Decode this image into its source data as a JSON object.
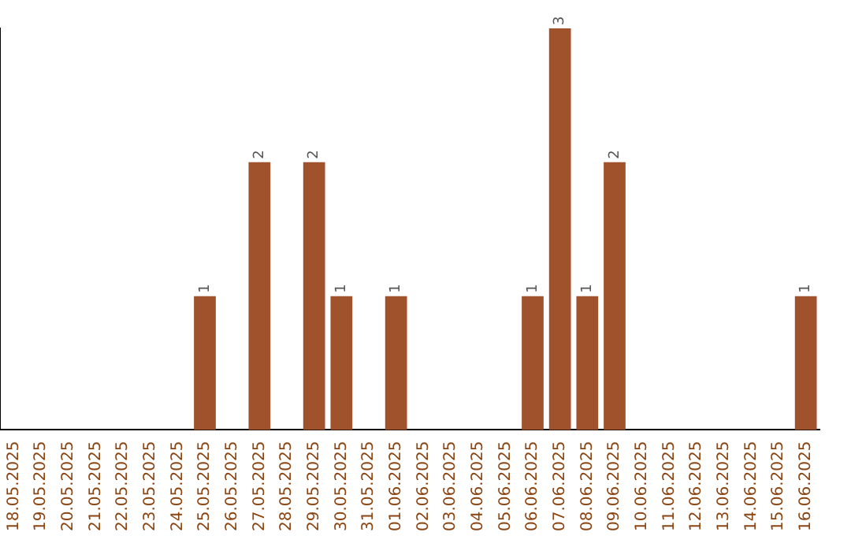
{
  "chart_data": {
    "type": "bar",
    "categories": [
      "18.05.2025",
      "19.05.2025",
      "20.05.2025",
      "21.05.2025",
      "22.05.2025",
      "23.05.2025",
      "24.05.2025",
      "25.05.2025",
      "26.05.2025",
      "27.05.2025",
      "28.05.2025",
      "29.05.2025",
      "30.05.2025",
      "31.05.2025",
      "01.06.2025",
      "02.06.2025",
      "03.06.2025",
      "04.06.2025",
      "05.06.2025",
      "06.06.2025",
      "07.06.2025",
      "08.06.2025",
      "09.06.2025",
      "10.06.2025",
      "11.06.2025",
      "12.06.2025",
      "13.06.2025",
      "14.06.2025",
      "15.06.2025",
      "16.06.2025"
    ],
    "values": [
      0,
      0,
      0,
      0,
      0,
      0,
      0,
      1,
      0,
      2,
      0,
      2,
      1,
      0,
      1,
      0,
      0,
      0,
      0,
      1,
      3,
      1,
      2,
      0,
      0,
      0,
      0,
      0,
      0,
      1
    ],
    "value_labels": [
      null,
      null,
      null,
      null,
      null,
      null,
      null,
      "1",
      null,
      "2",
      null,
      "2",
      "1",
      null,
      "1",
      null,
      null,
      null,
      null,
      "1",
      "3",
      "1",
      "2",
      null,
      null,
      null,
      null,
      null,
      null,
      "1"
    ],
    "color": "#a0522d",
    "ylim": [
      0,
      3
    ],
    "tick_labels": "x",
    "grid": false,
    "legend": false
  }
}
